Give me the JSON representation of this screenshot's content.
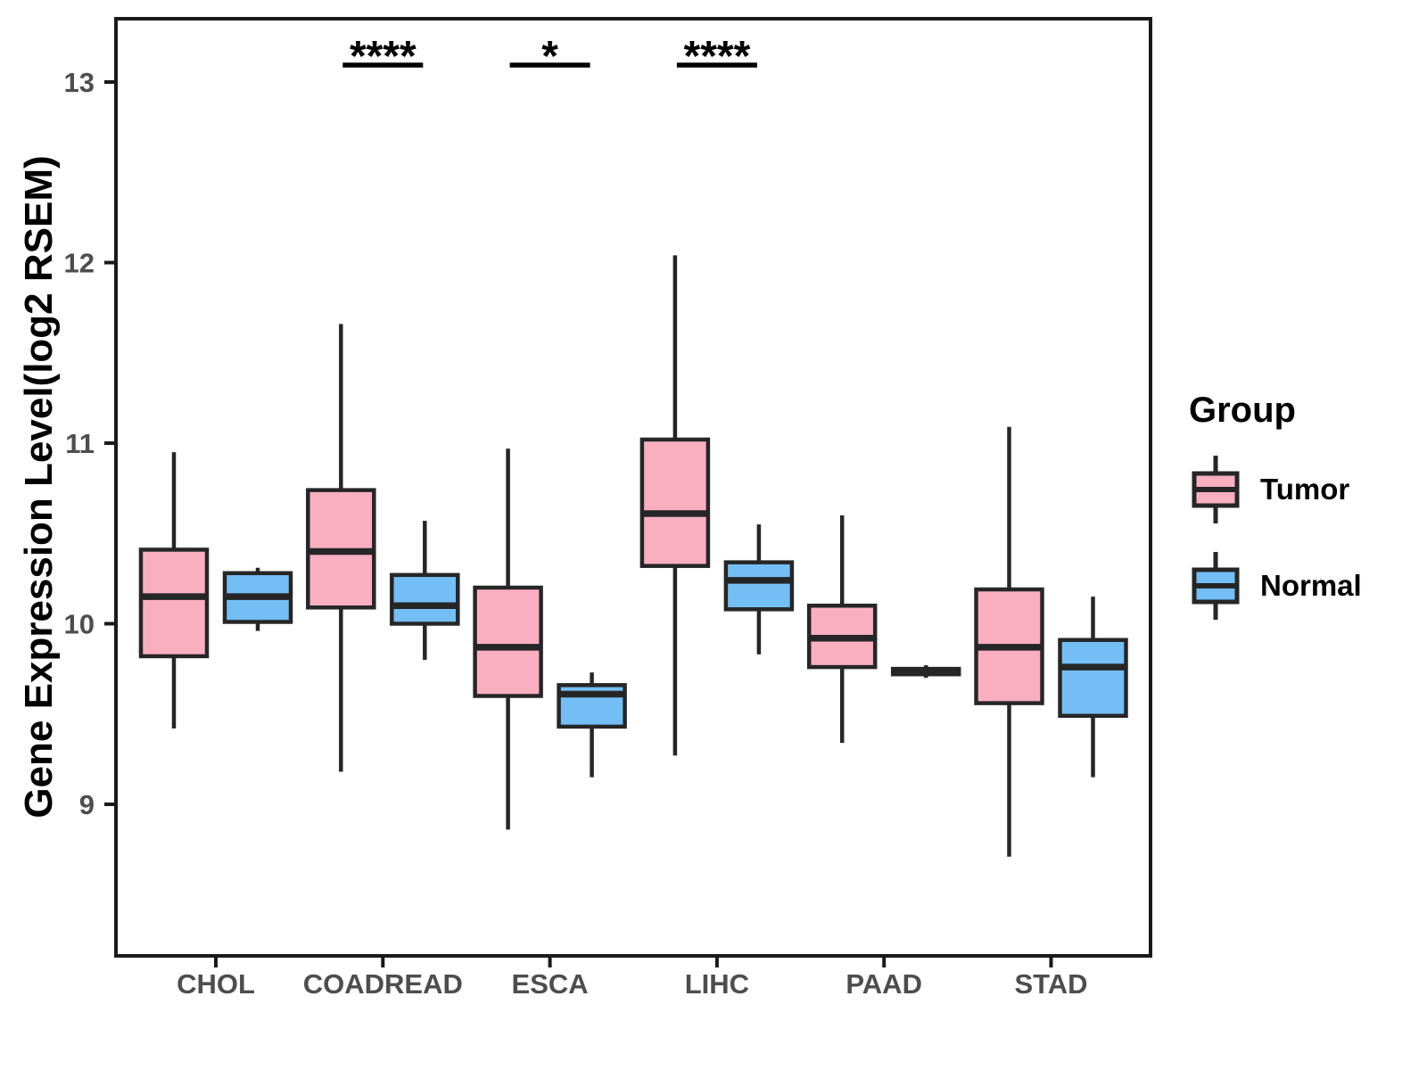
{
  "chart_data": {
    "type": "grouped_boxplot",
    "title": "",
    "xlabel": "",
    "ylabel": "Gene Expression Level(log2 RSEM)",
    "ylim": [
      8.16,
      13.35
    ],
    "yticks": [
      13,
      12,
      11,
      10,
      9
    ],
    "grid": "off",
    "categories": [
      "CHOL",
      "COADREAD",
      "ESCA",
      "LIHC",
      "PAAD",
      "STAD"
    ],
    "groups": [
      {
        "name": "Tumor",
        "color": "#FAAFC1"
      },
      {
        "name": "Normal",
        "color": "#73BFF5"
      }
    ],
    "series": [
      {
        "group": "Tumor",
        "boxes": [
          {
            "category": "CHOL",
            "low": 9.42,
            "q1": 9.82,
            "median": 10.15,
            "q3": 10.41,
            "high": 10.95
          },
          {
            "category": "COADREAD",
            "low": 9.18,
            "q1": 10.09,
            "median": 10.4,
            "q3": 10.74,
            "high": 11.66
          },
          {
            "category": "ESCA",
            "low": 8.86,
            "q1": 9.6,
            "median": 9.87,
            "q3": 10.2,
            "high": 10.97
          },
          {
            "category": "LIHC",
            "low": 9.27,
            "q1": 10.32,
            "median": 10.61,
            "q3": 11.02,
            "high": 12.04
          },
          {
            "category": "PAAD",
            "low": 9.34,
            "q1": 9.76,
            "median": 9.92,
            "q3": 10.1,
            "high": 10.6
          },
          {
            "category": "STAD",
            "low": 8.71,
            "q1": 9.56,
            "median": 9.87,
            "q3": 10.19,
            "high": 11.09
          }
        ]
      },
      {
        "group": "Normal",
        "boxes": [
          {
            "category": "CHOL",
            "low": 9.96,
            "q1": 10.01,
            "median": 10.15,
            "q3": 10.28,
            "high": 10.31
          },
          {
            "category": "COADREAD",
            "low": 9.8,
            "q1": 10.0,
            "median": 10.1,
            "q3": 10.27,
            "high": 10.57
          },
          {
            "category": "ESCA",
            "low": 9.15,
            "q1": 9.43,
            "median": 9.61,
            "q3": 9.66,
            "high": 9.73
          },
          {
            "category": "LIHC",
            "low": 9.83,
            "q1": 10.08,
            "median": 10.24,
            "q3": 10.34,
            "high": 10.55
          },
          {
            "category": "PAAD",
            "low": 9.7,
            "q1": 9.72,
            "median": 9.74,
            "q3": 9.75,
            "high": 9.77
          },
          {
            "category": "STAD",
            "low": 9.15,
            "q1": 9.49,
            "median": 9.76,
            "q3": 9.91,
            "high": 10.15
          }
        ]
      }
    ],
    "annotations": [
      {
        "category": "COADREAD",
        "label": "****"
      },
      {
        "category": "ESCA",
        "label": "*"
      },
      {
        "category": "LIHC",
        "label": "****"
      }
    ],
    "legend": {
      "title": "Group",
      "position": "right"
    },
    "style": {
      "box_outline": "#262626",
      "panel_border": "#1A1A1A",
      "axis_text_color": "#4D4D4D",
      "annotation_color": "#000000"
    }
  }
}
